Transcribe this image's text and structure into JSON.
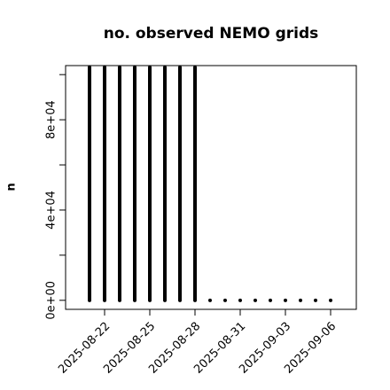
{
  "chart_data": {
    "type": "bar",
    "title": "no. observed NEMO grids",
    "ylabel": "n",
    "x": [
      "2025-08-21",
      "2025-08-22",
      "2025-08-23",
      "2025-08-24",
      "2025-08-25",
      "2025-08-26",
      "2025-08-27",
      "2025-08-28",
      "2025-08-29",
      "2025-08-30",
      "2025-08-31",
      "2025-09-01",
      "2025-09-02",
      "2025-09-03",
      "2025-09-04",
      "2025-09-05",
      "2025-09-06"
    ],
    "values": [
      104000,
      104000,
      104000,
      104000,
      104000,
      104000,
      104000,
      104000,
      0,
      0,
      0,
      0,
      0,
      0,
      0,
      0,
      0
    ],
    "color": "#000000",
    "xlim": [
      "2025-08-20",
      "2025-09-07"
    ],
    "xticks": [
      "2025-08-22",
      "2025-08-25",
      "2025-08-28",
      "2025-08-31",
      "2025-09-03",
      "2025-09-06"
    ],
    "ylim": [
      -4000,
      104000
    ],
    "yticks": [
      {
        "value": 0,
        "label": "0e+00"
      },
      {
        "value": 40000,
        "label": "4e+04"
      },
      {
        "value": 80000,
        "label": "8e+04"
      }
    ],
    "yminor_ticks": [
      20000,
      60000,
      100000
    ]
  }
}
